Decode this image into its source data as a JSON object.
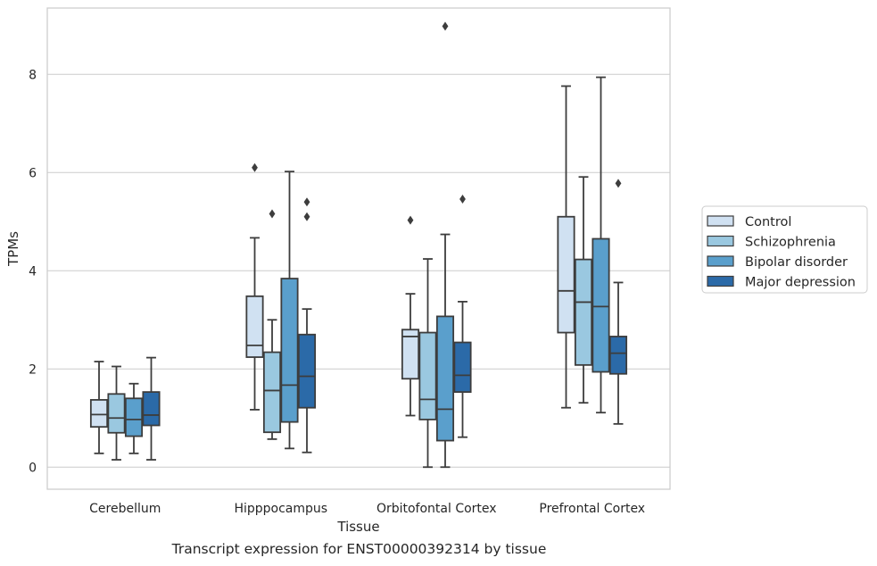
{
  "caption": "Transcript expression for ENST00000392314 by tissue",
  "chart_data": {
    "type": "box",
    "xlabel": "Tissue",
    "ylabel": "TPMs",
    "ylim": [
      -0.45,
      9.35
    ],
    "yticks": [
      0,
      2,
      4,
      6,
      8
    ],
    "grid": "horizontal",
    "legend_position": "right",
    "categories": [
      "Cerebellum",
      "Hipppocampus",
      "Orbitofontal Cortex",
      "Prefrontal Cortex"
    ],
    "series": [
      {
        "name": "Control",
        "color": "#d0e1f2",
        "boxes": [
          {
            "whisker_low": 0.28,
            "q1": 0.82,
            "median": 1.07,
            "q3": 1.37,
            "whisker_high": 2.15,
            "outliers": []
          },
          {
            "whisker_low": 1.17,
            "q1": 2.24,
            "median": 2.48,
            "q3": 3.48,
            "whisker_high": 4.67,
            "outliers": [
              6.1
            ]
          },
          {
            "whisker_low": 1.05,
            "q1": 1.8,
            "median": 2.66,
            "q3": 2.8,
            "whisker_high": 3.53,
            "outliers": [
              5.03
            ]
          },
          {
            "whisker_low": 1.21,
            "q1": 2.74,
            "median": 3.59,
            "q3": 5.1,
            "whisker_high": 7.76,
            "outliers": []
          }
        ]
      },
      {
        "name": "Schizophrenia",
        "color": "#9ac8e0",
        "boxes": [
          {
            "whisker_low": 0.15,
            "q1": 0.7,
            "median": 1.0,
            "q3": 1.49,
            "whisker_high": 2.05,
            "outliers": []
          },
          {
            "whisker_low": 0.57,
            "q1": 0.71,
            "median": 1.56,
            "q3": 2.34,
            "whisker_high": 3.0,
            "outliers": [
              5.16
            ]
          },
          {
            "whisker_low": 0.0,
            "q1": 0.97,
            "median": 1.38,
            "q3": 2.74,
            "whisker_high": 4.24,
            "outliers": []
          },
          {
            "whisker_low": 1.31,
            "q1": 2.08,
            "median": 3.36,
            "q3": 4.23,
            "whisker_high": 5.91,
            "outliers": []
          }
        ]
      },
      {
        "name": "Bipolar disorder",
        "color": "#5a9fcc",
        "boxes": [
          {
            "whisker_low": 0.28,
            "q1": 0.63,
            "median": 0.97,
            "q3": 1.4,
            "whisker_high": 1.7,
            "outliers": []
          },
          {
            "whisker_low": 0.38,
            "q1": 0.92,
            "median": 1.67,
            "q3": 3.84,
            "whisker_high": 6.02,
            "outliers": []
          },
          {
            "whisker_low": 0.0,
            "q1": 0.54,
            "median": 1.18,
            "q3": 3.07,
            "whisker_high": 4.74,
            "outliers": [
              8.98
            ]
          },
          {
            "whisker_low": 1.11,
            "q1": 1.94,
            "median": 3.27,
            "q3": 4.65,
            "whisker_high": 7.94,
            "outliers": []
          }
        ]
      },
      {
        "name": "Major depression",
        "color": "#2b6aa8",
        "boxes": [
          {
            "whisker_low": 0.15,
            "q1": 0.85,
            "median": 1.06,
            "q3": 1.53,
            "whisker_high": 2.23,
            "outliers": []
          },
          {
            "whisker_low": 0.3,
            "q1": 1.21,
            "median": 1.85,
            "q3": 2.7,
            "whisker_high": 3.22,
            "outliers": [
              5.1,
              5.4
            ]
          },
          {
            "whisker_low": 0.61,
            "q1": 1.53,
            "median": 1.87,
            "q3": 2.54,
            "whisker_high": 3.37,
            "outliers": [
              5.46
            ]
          },
          {
            "whisker_low": 0.88,
            "q1": 1.9,
            "median": 2.32,
            "q3": 2.66,
            "whisker_high": 3.76,
            "outliers": [
              5.78
            ]
          }
        ]
      }
    ]
  }
}
